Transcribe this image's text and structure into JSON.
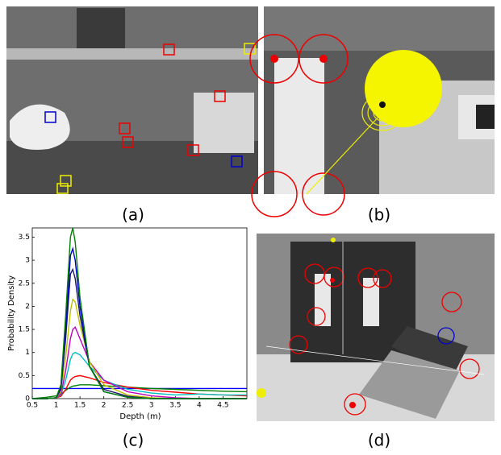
{
  "panels": {
    "a": "(a)",
    "b": "(b)",
    "c": "(c)",
    "d": "(d)"
  },
  "chart_data": {
    "type": "line",
    "xlabel": "Depth (m)",
    "ylabel": "Probability Density",
    "x": [
      0.5,
      0.8,
      1.0,
      1.1,
      1.2,
      1.3,
      1.35,
      1.4,
      1.5,
      1.7,
      2.0,
      2.5,
      3.0,
      3.5,
      4.0,
      4.5,
      5.0
    ],
    "series": [
      {
        "color": "#0000ff",
        "values": [
          0.22,
          0.22,
          0.22,
          0.22,
          0.22,
          0.22,
          0.22,
          0.22,
          0.22,
          0.22,
          0.22,
          0.22,
          0.22,
          0.22,
          0.22,
          0.22,
          0.22
        ]
      },
      {
        "color": "#007f00",
        "values": [
          0,
          0.03,
          0.06,
          0.1,
          0.18,
          0.25,
          0.27,
          0.28,
          0.3,
          0.3,
          0.28,
          0.25,
          0.22,
          0.2,
          0.18,
          0.16,
          0.15
        ]
      },
      {
        "color": "#ff0000",
        "values": [
          0,
          0,
          0.02,
          0.05,
          0.2,
          0.4,
          0.45,
          0.48,
          0.5,
          0.45,
          0.35,
          0.25,
          0.18,
          0.14,
          0.1,
          0.08,
          0.06
        ]
      },
      {
        "color": "#00bfbf",
        "values": [
          0,
          0,
          0.02,
          0.08,
          0.4,
          0.85,
          0.97,
          1.0,
          0.95,
          0.7,
          0.4,
          0.2,
          0.12,
          0.08,
          0.1,
          0.08,
          0.08
        ]
      },
      {
        "color": "#bf00bf",
        "values": [
          0,
          0,
          0.02,
          0.1,
          0.6,
          1.3,
          1.5,
          1.55,
          1.3,
          0.8,
          0.4,
          0.15,
          0.06,
          0.02,
          0,
          0,
          0
        ]
      },
      {
        "color": "#bfbf00",
        "values": [
          0,
          0,
          0.02,
          0.15,
          0.9,
          1.9,
          2.15,
          2.1,
          1.6,
          0.8,
          0.3,
          0.08,
          0.02,
          0,
          0,
          0,
          0
        ]
      },
      {
        "color": "#1a1a66",
        "values": [
          0,
          0,
          0.02,
          0.2,
          1.3,
          2.7,
          2.8,
          2.6,
          1.8,
          0.7,
          0.2,
          0.05,
          0,
          0,
          0,
          0,
          0
        ]
      },
      {
        "color": "#0000cc",
        "values": [
          0,
          0,
          0.02,
          0.25,
          1.5,
          3.1,
          3.25,
          3.0,
          2.0,
          0.7,
          0.15,
          0.03,
          0,
          0,
          0,
          0,
          0
        ]
      },
      {
        "color": "#008000",
        "values": [
          0,
          0,
          0.02,
          0.3,
          1.8,
          3.5,
          3.7,
          3.4,
          2.2,
          0.7,
          0.15,
          0.03,
          0,
          0,
          0,
          0,
          0
        ]
      }
    ],
    "xlim": [
      0.5,
      5
    ],
    "xticks": [
      0.5,
      1,
      1.5,
      2,
      2.5,
      3,
      3.5,
      4,
      4.5
    ],
    "ylim": [
      0,
      3.7
    ],
    "yticks": [
      0,
      0.5,
      1,
      1.5,
      2,
      2.5,
      3,
      3.5
    ]
  }
}
